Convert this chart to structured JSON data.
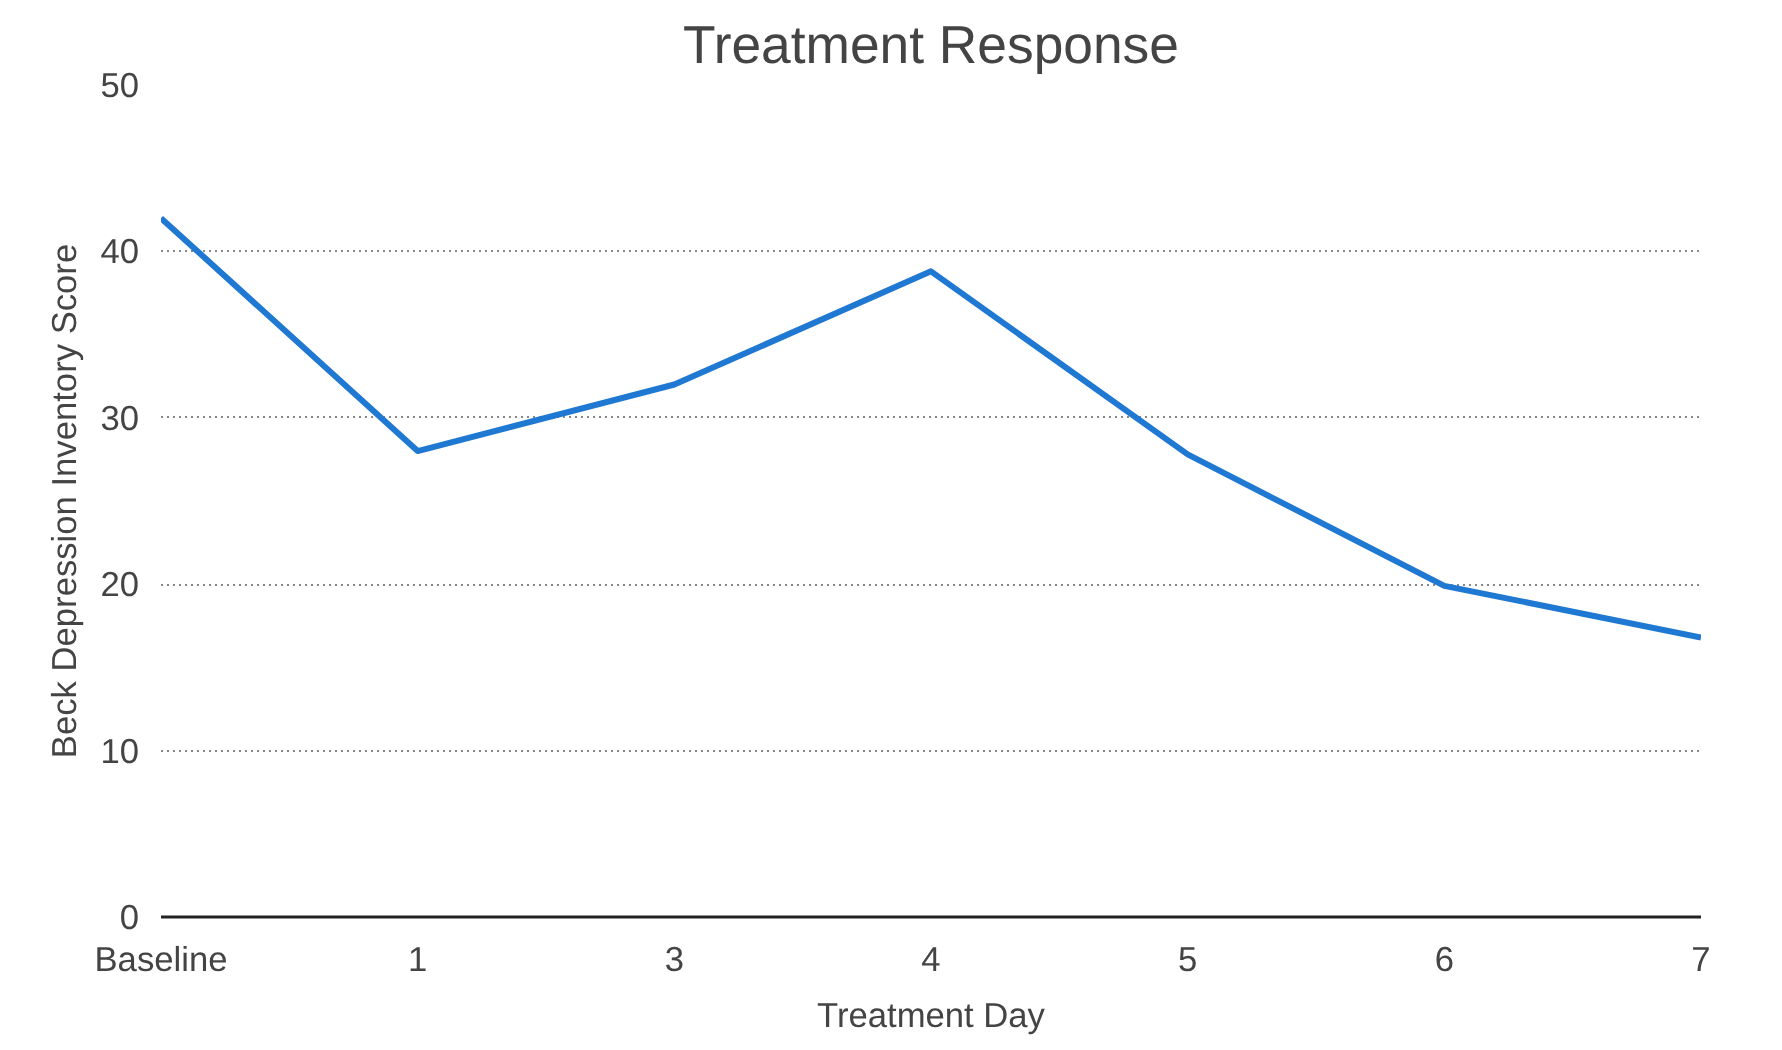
{
  "chart_data": {
    "type": "line",
    "title": "Treatment Response",
    "xlabel": "Treatment Day",
    "ylabel": "Beck Depression Inventory Score",
    "categories": [
      "Baseline",
      "1",
      "3",
      "4",
      "5",
      "6",
      "7"
    ],
    "series": [
      {
        "color": "#1f78d1",
        "values": [
          42,
          28,
          32,
          38.8,
          27.8,
          19.9,
          16.8
        ]
      }
    ],
    "ylim": [
      0,
      50
    ],
    "yticks": [
      0,
      10,
      20,
      30,
      40,
      50
    ],
    "grid": "y",
    "marker": "none",
    "line_style": "solid"
  }
}
